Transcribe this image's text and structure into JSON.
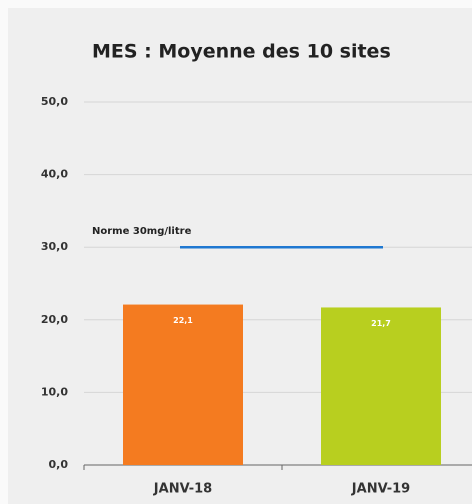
{
  "chart_data": {
    "type": "bar",
    "title": "MES : Moyenne des 10 sites",
    "categories": [
      "JANV-18",
      "JANV-19"
    ],
    "series": [
      {
        "name": null,
        "colors": [
          "#f47b20",
          "#b8cf1f"
        ],
        "values": [
          22.1,
          21.7
        ],
        "value_labels": [
          "22,1",
          "21,7"
        ]
      }
    ],
    "ylim": [
      0,
      50
    ],
    "yticks": [
      {
        "value": 0,
        "label": "0,0"
      },
      {
        "value": 10,
        "label": "10,0"
      },
      {
        "value": 20,
        "label": "20,0"
      },
      {
        "value": 30,
        "label": "30,0"
      },
      {
        "value": 40,
        "label": "40,0"
      },
      {
        "value": 50,
        "label": "50,0"
      }
    ],
    "grid": true,
    "reference_line": {
      "label": "Norme 30mg/litre",
      "value": 30,
      "color": "#1f78d1"
    }
  }
}
